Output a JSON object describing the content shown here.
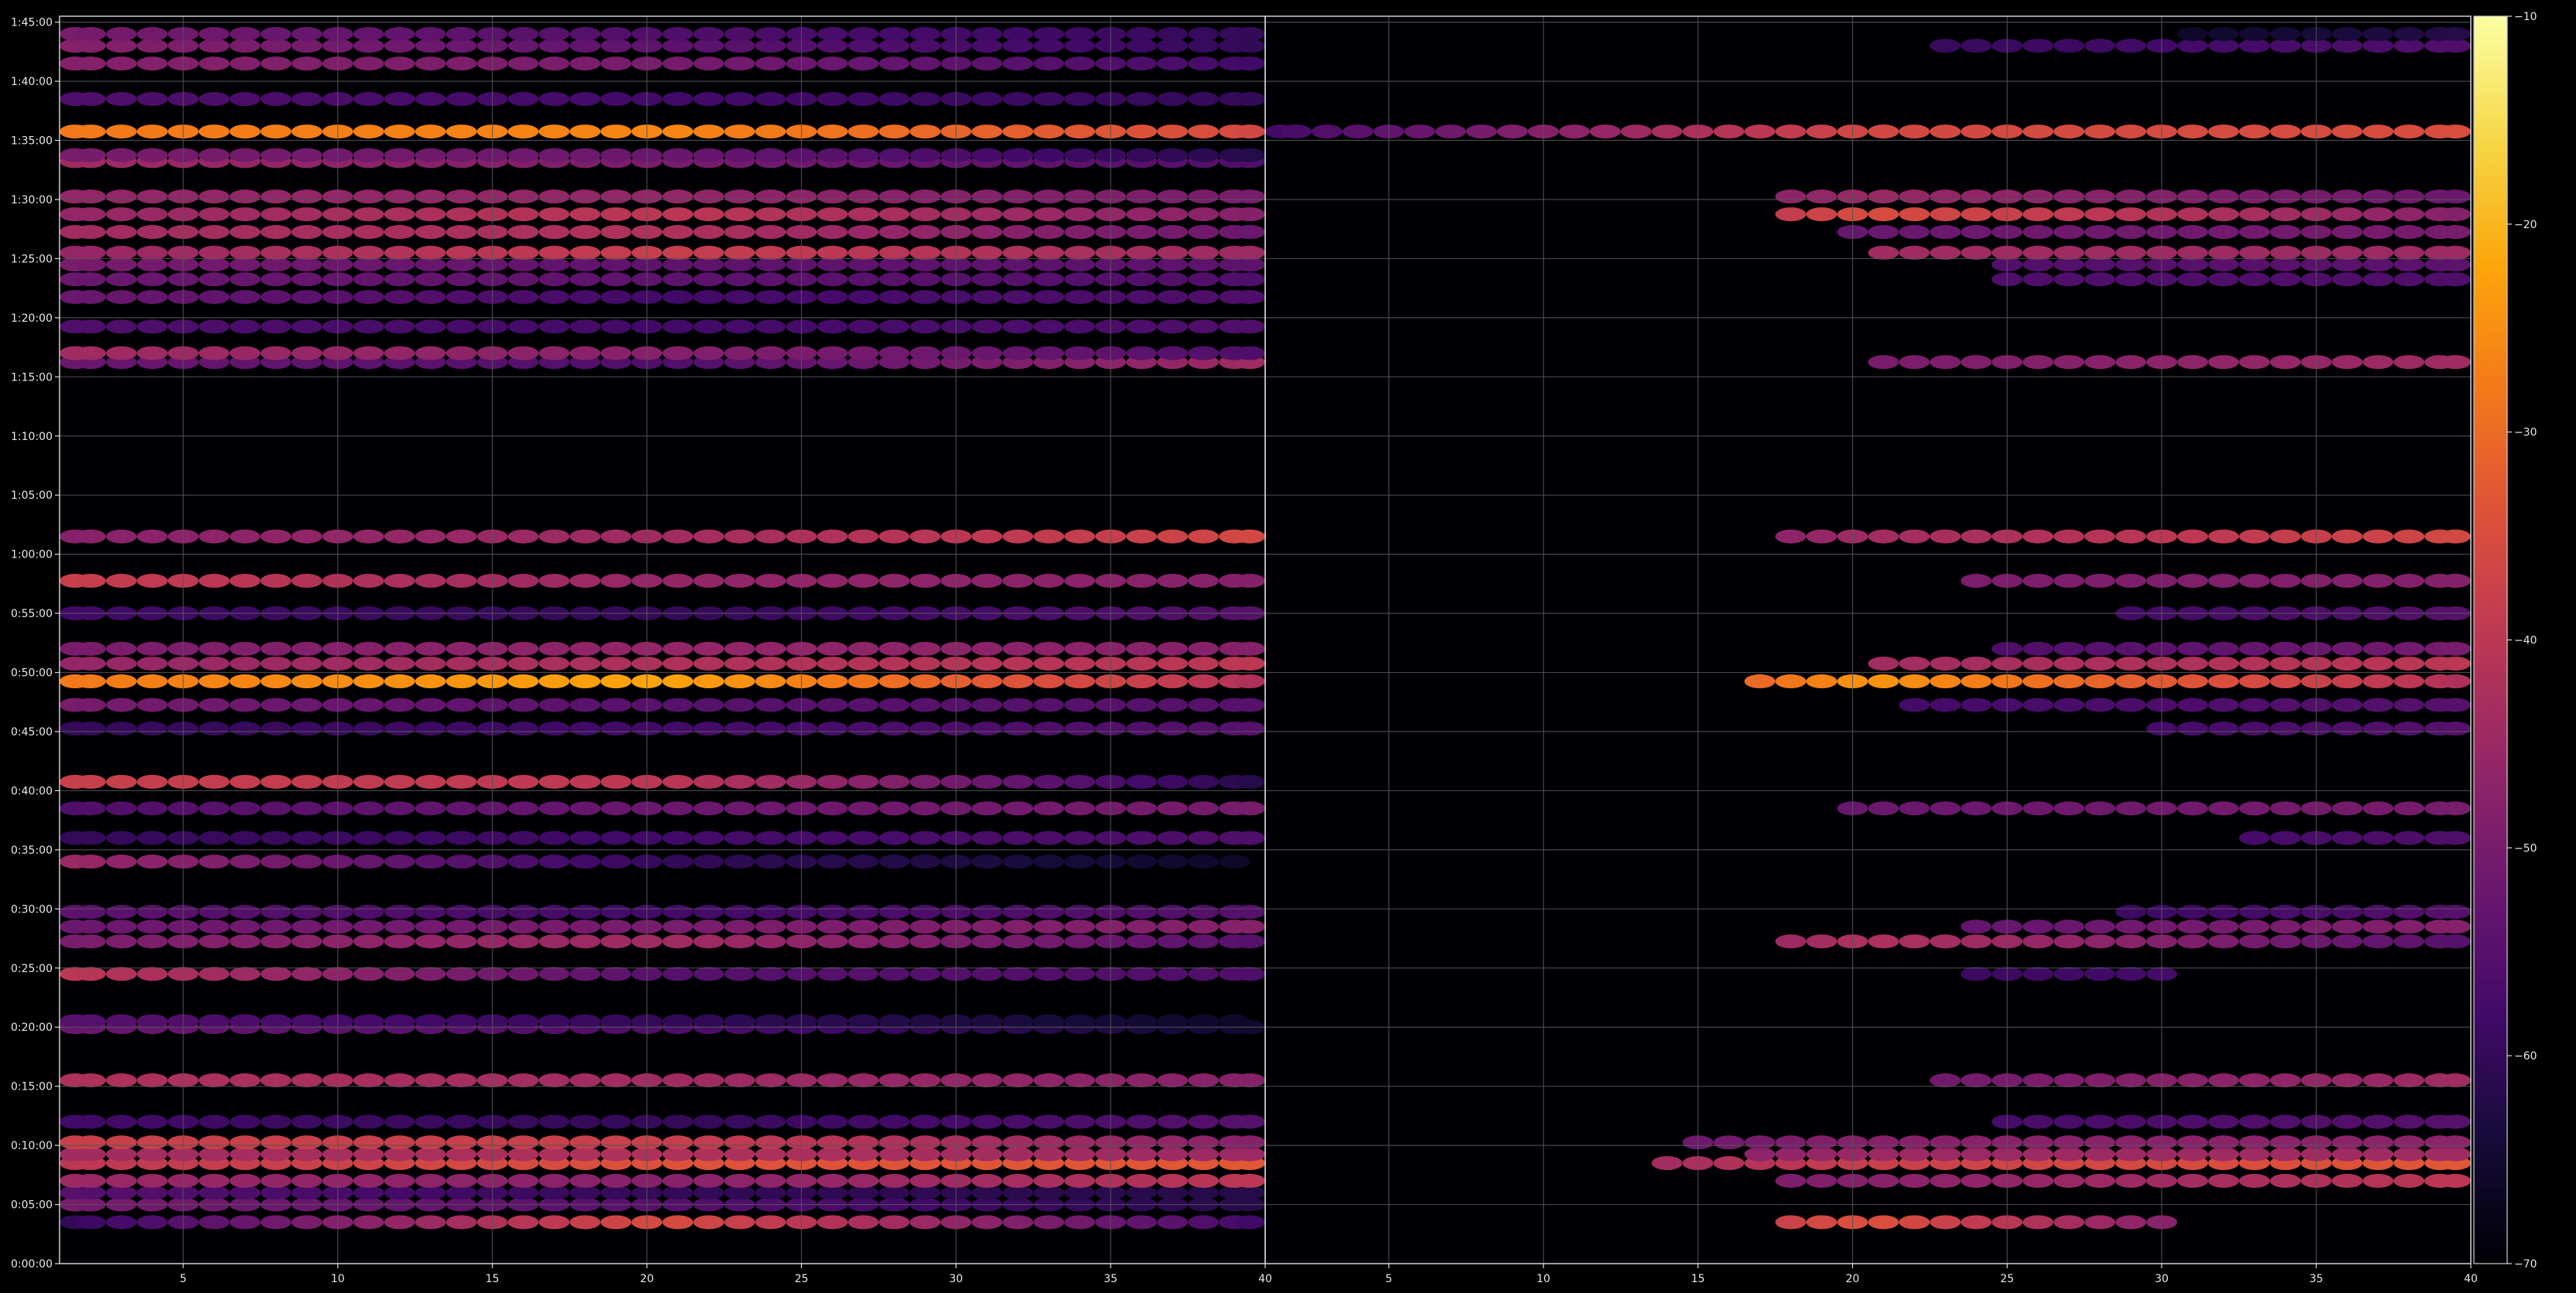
{
  "chart_data": {
    "type": "heatmap",
    "title": "",
    "xlabel": "",
    "ylabel": "",
    "grid": true,
    "background": "#000000",
    "grid_color": "#555555",
    "colormap": "inferno",
    "colorbar": {
      "range": [
        -70,
        -10
      ],
      "ticks": [
        -10,
        -20,
        -30,
        -40,
        -50,
        -60,
        -70
      ]
    },
    "y_axis": {
      "range_seconds": [
        0,
        6330
      ],
      "tick_seconds": [
        0,
        300,
        600,
        900,
        1200,
        1500,
        1800,
        2100,
        2400,
        2700,
        3000,
        3300,
        3600,
        3900,
        4200,
        4500,
        4800,
        5100,
        5400,
        5700,
        6000,
        6300
      ],
      "tick_labels": [
        "0:00:00",
        "0:05:00",
        "0:10:00",
        "0:15:00",
        "0:20:00",
        "0:25:00",
        "0:30:00",
        "0:35:00",
        "0:40:00",
        "0:45:00",
        "0:50:00",
        "0:55:00",
        "1:00:00",
        "1:05:00",
        "1:10:00",
        "1:15:00",
        "1:20:00",
        "1:25:00",
        "1:30:00",
        "1:35:00",
        "1:40:00",
        "1:45:00"
      ]
    },
    "panels": [
      {
        "xlim": [
          1,
          40
        ],
        "x_ticks": [
          5,
          10,
          15,
          20,
          25,
          30,
          35
        ],
        "x_tick_labels": [
          "5",
          "10",
          "15",
          "20",
          "25",
          "30",
          "35"
        ]
      },
      {
        "xlim": [
          1,
          40
        ],
        "x_ticks": [
          5,
          10,
          15,
          20,
          25,
          30,
          35,
          40
        ],
        "x_tick_labels": [
          "40",
          "5",
          "10",
          "15",
          "20",
          "25",
          "30",
          "35",
          "40"
        ],
        "x_tick_positions": [
          1,
          5,
          10,
          15,
          20,
          25,
          30,
          35,
          40
        ]
      }
    ],
    "bands": [
      {
        "t": 210,
        "left": [
          -60,
          -35,
          -58
        ],
        "right": [
          -60,
          -34,
          -62
        ],
        "pr": [
          18,
          30
        ],
        "lr": 0.6
      },
      {
        "t": 300,
        "left": [
          -50,
          -55,
          -62
        ],
        "right": [
          -70,
          -70,
          -70
        ],
        "lr": 0.3
      },
      {
        "t": 360,
        "left": [
          -55,
          -60,
          -62
        ],
        "right": [
          -70,
          -70,
          -70
        ],
        "lr": 0.3
      },
      {
        "t": 420,
        "left": [
          -45,
          -48,
          -40
        ],
        "right": [
          -58,
          -48,
          -40
        ],
        "pr": [
          18,
          40
        ],
        "lr": 0.55
      },
      {
        "t": 510,
        "left": [
          -40,
          -34,
          -33
        ],
        "right": [
          -55,
          -38,
          -33
        ],
        "pr": [
          14,
          40
        ],
        "lr": 0.6
      },
      {
        "t": 555,
        "left": [
          -44,
          -42,
          -45
        ],
        "right": [
          -55,
          -45,
          -44
        ],
        "pr": [
          17,
          40
        ],
        "lr": 0.5
      },
      {
        "t": 615,
        "left": [
          -38,
          -38,
          -48
        ],
        "right": [
          -60,
          -48,
          -47
        ],
        "pr": [
          15,
          40
        ],
        "lr": 0.55
      },
      {
        "t": 720,
        "left": [
          -58,
          -60,
          -55
        ],
        "right": [
          -70,
          -58,
          -55
        ],
        "pr": [
          25,
          40
        ],
        "lr": 0.4
      },
      {
        "t": 930,
        "left": [
          -42,
          -44,
          -48
        ],
        "right": [
          -70,
          -52,
          -44
        ],
        "pr": [
          23,
          40
        ],
        "lr": 0.5
      },
      {
        "t": 1200,
        "left": [
          -52,
          -56,
          -65
        ],
        "right": [
          -70,
          -70,
          -70
        ],
        "lr": 0.3
      },
      {
        "t": 1230,
        "left": [
          -55,
          -60,
          -66
        ],
        "right": [
          -70,
          -70,
          -70
        ],
        "lr": 0.3
      },
      {
        "t": 1470,
        "left": [
          -40,
          -55,
          -56
        ],
        "right": [
          -70,
          -60,
          -55
        ],
        "pr": [
          24,
          30
        ],
        "lr": 0.55
      },
      {
        "t": 1635,
        "left": [
          -50,
          -44,
          -55
        ],
        "right": [
          -62,
          -42,
          -55
        ],
        "pr": [
          18,
          40
        ],
        "lr": 0.5
      },
      {
        "t": 1710,
        "left": [
          -52,
          -50,
          -48
        ],
        "right": [
          -66,
          -54,
          -48
        ],
        "pr": [
          24,
          40
        ],
        "lr": 0.45
      },
      {
        "t": 1785,
        "left": [
          -54,
          -58,
          -55
        ],
        "right": [
          -70,
          -62,
          -55
        ],
        "pr": [
          29,
          40
        ],
        "lr": 0.4
      },
      {
        "t": 2040,
        "left": [
          -45,
          -60,
          -66
        ],
        "right": [
          -70,
          -70,
          -70
        ],
        "lr": 0.3
      },
      {
        "t": 2160,
        "left": [
          -60,
          -58,
          -56
        ],
        "right": [
          -70,
          -60,
          -56
        ],
        "pr": [
          33,
          40
        ],
        "lr": 0.35
      },
      {
        "t": 2310,
        "left": [
          -56,
          -52,
          -50
        ],
        "right": [
          -66,
          -52,
          -50
        ],
        "pr": [
          20,
          40
        ],
        "lr": 0.4
      },
      {
        "t": 2445,
        "left": [
          -38,
          -40,
          -62
        ],
        "right": [
          -70,
          -70,
          -70
        ],
        "lr": 0.3
      },
      {
        "t": 2715,
        "left": [
          -60,
          -58,
          -55
        ],
        "right": [
          -70,
          -60,
          -55
        ],
        "pr": [
          30,
          40
        ],
        "lr": 0.4
      },
      {
        "t": 2835,
        "left": [
          -50,
          -55,
          -55
        ],
        "right": [
          -70,
          -58,
          -55
        ],
        "pr": [
          22,
          40
        ],
        "lr": 0.4
      },
      {
        "t": 2955,
        "left": [
          -28,
          -22,
          -42
        ],
        "right": [
          -58,
          -24,
          -42
        ],
        "pr": [
          17,
          40
        ],
        "lr": 0.7
      },
      {
        "t": 3045,
        "left": [
          -46,
          -42,
          -40
        ],
        "right": [
          -62,
          -44,
          -40
        ],
        "pr": [
          21,
          40
        ],
        "lr": 0.5
      },
      {
        "t": 3120,
        "left": [
          -50,
          -46,
          -48
        ],
        "right": [
          -70,
          -58,
          -50
        ],
        "pr": [
          25,
          40
        ],
        "lr": 0.4
      },
      {
        "t": 3300,
        "left": [
          -58,
          -60,
          -55
        ],
        "right": [
          -70,
          -60,
          -55
        ],
        "pr": [
          29,
          40
        ],
        "lr": 0.35
      },
      {
        "t": 3465,
        "left": [
          -38,
          -46,
          -48
        ],
        "right": [
          -70,
          -50,
          -48
        ],
        "pr": [
          24,
          40
        ],
        "lr": 0.45
      },
      {
        "t": 3690,
        "left": [
          -48,
          -44,
          -36
        ],
        "right": [
          -66,
          -44,
          -36
        ],
        "pr": [
          18,
          40
        ],
        "lr": 0.5
      },
      {
        "t": 4575,
        "left": [
          -52,
          -56,
          -44
        ],
        "right": [
          -70,
          -50,
          -44
        ],
        "pr": [
          21,
          40
        ],
        "lr": 0.45
      },
      {
        "t": 4620,
        "left": [
          -44,
          -48,
          -56
        ],
        "right": [
          -70,
          -70,
          -70
        ],
        "lr": 0.3
      },
      {
        "t": 4755,
        "left": [
          -56,
          -58,
          -56
        ],
        "right": [
          -70,
          -70,
          -70
        ],
        "lr": 0.3
      },
      {
        "t": 4905,
        "left": [
          -52,
          -58,
          -56
        ],
        "right": [
          -70,
          -70,
          -70
        ],
        "lr": 0.3
      },
      {
        "t": 4995,
        "left": [
          -52,
          -54,
          -56
        ],
        "right": [
          -66,
          -56,
          -56
        ],
        "pr": [
          25,
          40
        ],
        "lr": 0.4
      },
      {
        "t": 5070,
        "left": [
          -50,
          -54,
          -54
        ],
        "right": [
          -66,
          -56,
          -54
        ],
        "pr": [
          25,
          40
        ],
        "lr": 0.4
      },
      {
        "t": 5130,
        "left": [
          -46,
          -38,
          -45
        ],
        "right": [
          -60,
          -44,
          -45
        ],
        "pr": [
          21,
          40
        ],
        "lr": 0.5
      },
      {
        "t": 5235,
        "left": [
          -44,
          -42,
          -52
        ],
        "right": [
          -70,
          -52,
          -50
        ],
        "pr": [
          20,
          40
        ],
        "lr": 0.45
      },
      {
        "t": 5325,
        "left": [
          -46,
          -40,
          -48
        ],
        "right": [
          -62,
          -35,
          -48
        ],
        "pr": [
          18,
          40
        ],
        "lr": 0.55
      },
      {
        "t": 5415,
        "left": [
          -46,
          -46,
          -50
        ],
        "right": [
          -60,
          -45,
          -52
        ],
        "pr": [
          18,
          40
        ],
        "lr": 0.45
      },
      {
        "t": 5595,
        "left": [
          -44,
          -50,
          -56
        ],
        "right": [
          -70,
          -70,
          -70
        ],
        "lr": 0.3
      },
      {
        "t": 5625,
        "left": [
          -50,
          -52,
          -62
        ],
        "right": [
          -70,
          -70,
          -70
        ],
        "lr": 0.3
      },
      {
        "t": 5745,
        "left": [
          -28,
          -26,
          -36
        ],
        "right": [
          -58,
          -36,
          -35
        ],
        "pr": [
          1,
          40
        ],
        "lr": 0.7
      },
      {
        "t": 5910,
        "left": [
          -56,
          -58,
          -60
        ],
        "right": [
          -70,
          -70,
          -70
        ],
        "lr": 0.3
      },
      {
        "t": 6090,
        "left": [
          -48,
          -50,
          -58
        ],
        "right": [
          -70,
          -70,
          -70
        ],
        "lr": 0.3
      },
      {
        "t": 6180,
        "left": [
          -48,
          -54,
          -60
        ],
        "right": [
          -70,
          -60,
          -56
        ],
        "pr": [
          23,
          40
        ],
        "lr": 0.4
      },
      {
        "t": 6240,
        "left": [
          -50,
          -56,
          -60
        ],
        "right": [
          -70,
          -70,
          -62
        ],
        "pr": [
          30,
          40
        ],
        "lr": 0.35
      }
    ]
  }
}
